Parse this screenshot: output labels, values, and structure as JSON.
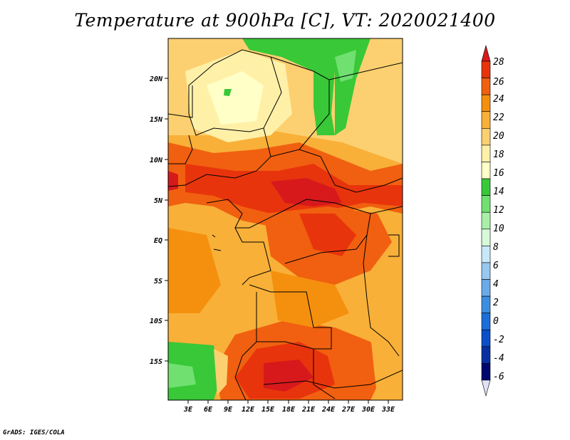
{
  "title": "Temperature at 900hPa [C], VT: 2020021400",
  "credit": "GrADS: IGES/COLA",
  "map": {
    "lat_labels": [
      "20N",
      "15N",
      "10N",
      "5N",
      "EQ",
      "5S",
      "10S",
      "15S"
    ],
    "lon_labels": [
      "3E",
      "6E",
      "9E",
      "12E",
      "15E",
      "18E",
      "21E",
      "24E",
      "27E",
      "30E",
      "33E"
    ],
    "lon_range": [
      0,
      35
    ],
    "lat_range": [
      -20,
      25
    ]
  },
  "colorbar": {
    "labels": [
      "28",
      "26",
      "24",
      "22",
      "20",
      "18",
      "16",
      "14",
      "12",
      "10",
      "8",
      "6",
      "4",
      "2",
      "0",
      "-2",
      "-4",
      "-6"
    ],
    "colors": [
      "#d7191c",
      "#e8340c",
      "#f06010",
      "#f5900e",
      "#f8b038",
      "#fcd070",
      "#fff0a8",
      "#ffffc8",
      "#38c838",
      "#70e070",
      "#a8f0a8",
      "#d8f8d8",
      "#c8e8f8",
      "#96c8f0",
      "#6aaae8",
      "#3c8ee0",
      "#1c6ed8",
      "#0a4ec8",
      "#0830a0",
      "#000870",
      "#e0e0f8"
    ]
  }
}
